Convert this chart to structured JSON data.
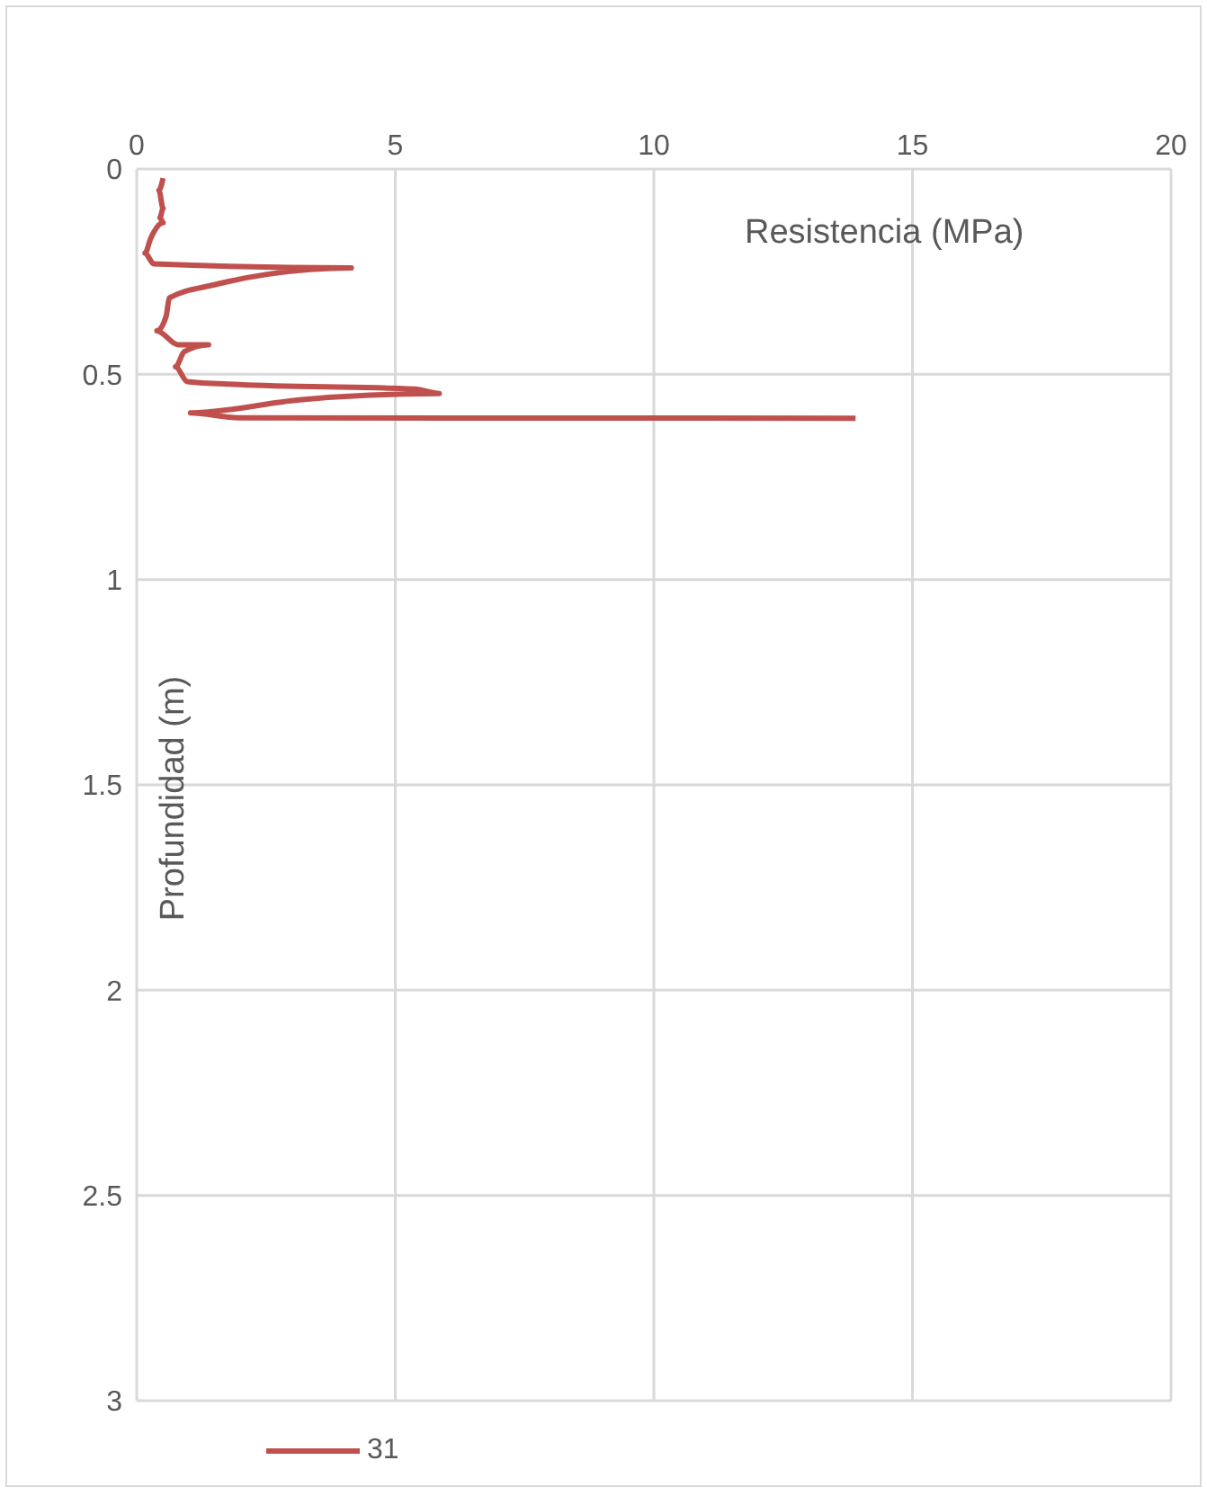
{
  "chart_data": {
    "type": "line",
    "xlabel": "Resistencia (MPa)",
    "ylabel": "Profundidad (m)",
    "x": [
      0.51,
      0.43,
      0.51,
      0.45,
      0.51,
      0.27,
      0.16,
      0.33,
      4.15,
      2.55,
      1.5,
      0.63,
      0.57,
      0.39,
      0.8,
      1.39,
      0.92,
      0.75,
      0.98,
      1.98,
      5.38,
      5.85,
      3.15,
      1.04,
      1.98,
      13.9
    ],
    "series": [
      {
        "name": "31",
        "color": "#c0504d",
        "values": [
          0.022,
          0.052,
          0.096,
          0.118,
          0.131,
          0.169,
          0.205,
          0.231,
          0.241,
          0.256,
          0.282,
          0.314,
          0.358,
          0.394,
          0.428,
          0.428,
          0.445,
          0.482,
          0.518,
          0.525,
          0.536,
          0.547,
          0.562,
          0.594,
          0.606,
          0.607
        ]
      }
    ],
    "xlim": [
      0,
      20
    ],
    "xticks": [
      0,
      5,
      10,
      15,
      20
    ],
    "ylim": [
      3,
      0
    ],
    "yticks": [
      0,
      0.5,
      1,
      1.5,
      2,
      2.5,
      3
    ],
    "grid": true,
    "legend": "bottom",
    "marker": "none",
    "line_style": "solid"
  }
}
